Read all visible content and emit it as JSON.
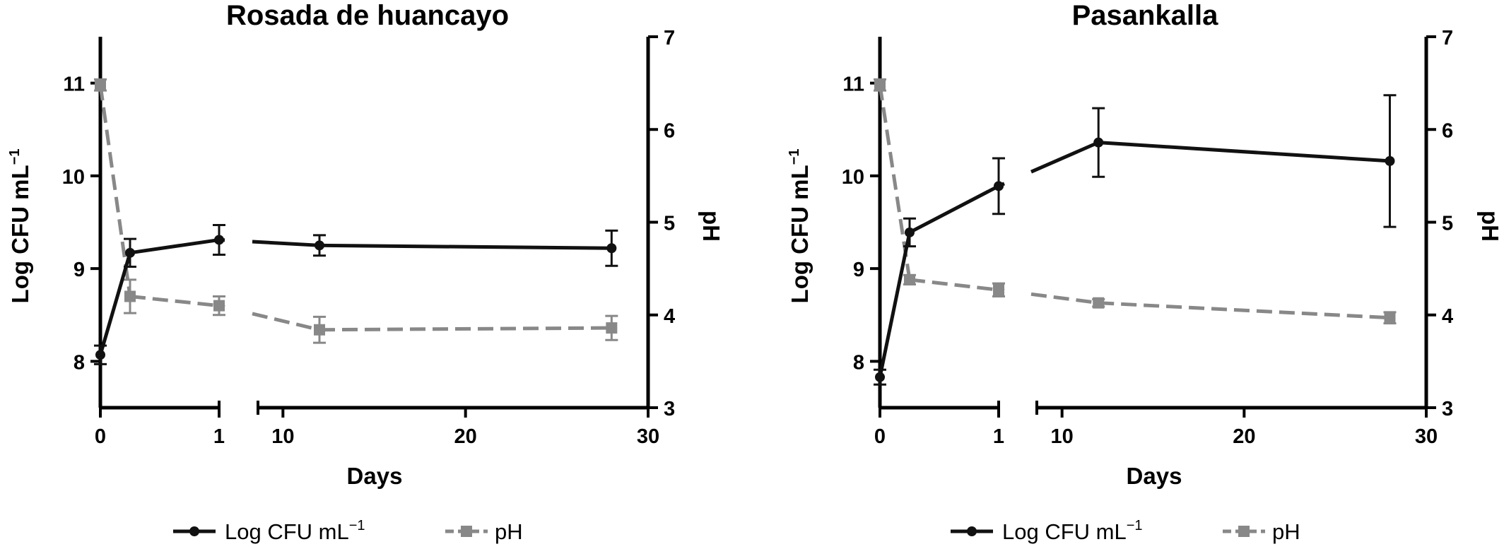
{
  "colors": {
    "cfu": "#111111",
    "ph": "#888888"
  },
  "legend": {
    "cfu": "Log CFU mL",
    "cfu_sup": "−1",
    "ph": "pH"
  },
  "axes": {
    "x_label": "Days",
    "y_left_label": "Log CFU mL",
    "y_left_sup": "−1",
    "y_right_label": "pH",
    "x_ticks_first": [
      "0",
      "1"
    ],
    "x_ticks_second": [
      "10",
      "20",
      "30"
    ],
    "y_left_ticks": [
      "8",
      "9",
      "10",
      "11"
    ],
    "y_right_ticks": [
      "3",
      "4",
      "5",
      "6",
      "7"
    ]
  },
  "chart_data": [
    {
      "type": "line",
      "title": "Rosada de huancayo",
      "xlabel": "Days",
      "ylabel": "Log CFU mL−1",
      "y2label": "pH",
      "x_axis_break": "between 1 and ~2.5 days; first segment 0–1 day, second segment ~2.5–30 days",
      "ylim": [
        7.5,
        11.5
      ],
      "y2lim": [
        3,
        7
      ],
      "series": [
        {
          "name": "Log CFU mL−1",
          "axis": "left",
          "style": "solid",
          "marker": "circle",
          "x": [
            0,
            0.25,
            1,
            12,
            28
          ],
          "y": [
            8.07,
            9.17,
            9.31,
            9.25,
            9.22
          ],
          "err": [
            0.1,
            0.15,
            0.16,
            0.11,
            0.19
          ]
        },
        {
          "name": "pH",
          "axis": "right",
          "style": "dashed",
          "marker": "square",
          "x": [
            0,
            0.25,
            1,
            12,
            28
          ],
          "y": [
            6.48,
            4.2,
            4.1,
            3.84,
            3.86
          ],
          "err": [
            0.06,
            0.18,
            0.1,
            0.14,
            0.13
          ]
        }
      ]
    },
    {
      "type": "line",
      "title": "Pasankalla",
      "xlabel": "Days",
      "ylabel": "Log CFU mL−1",
      "y2label": "pH",
      "x_axis_break": "between 1 and ~2.5 days; first segment 0–1 day, second segment ~2.5–30 days",
      "ylim": [
        7.5,
        11.5
      ],
      "y2lim": [
        3,
        7
      ],
      "series": [
        {
          "name": "Log CFU mL−1",
          "axis": "left",
          "style": "solid",
          "marker": "circle",
          "x": [
            0,
            0.25,
            1,
            12,
            28
          ],
          "y": [
            7.83,
            9.39,
            9.89,
            10.36,
            10.16
          ],
          "err": [
            0.08,
            0.15,
            0.3,
            0.37,
            0.71
          ]
        },
        {
          "name": "pH",
          "axis": "right",
          "style": "dashed",
          "marker": "square",
          "x": [
            0,
            0.25,
            1,
            12,
            28
          ],
          "y": [
            6.48,
            4.38,
            4.27,
            4.13,
            3.97
          ],
          "err": [
            0.06,
            0.05,
            0.07,
            0.04,
            0.06
          ]
        }
      ]
    }
  ]
}
